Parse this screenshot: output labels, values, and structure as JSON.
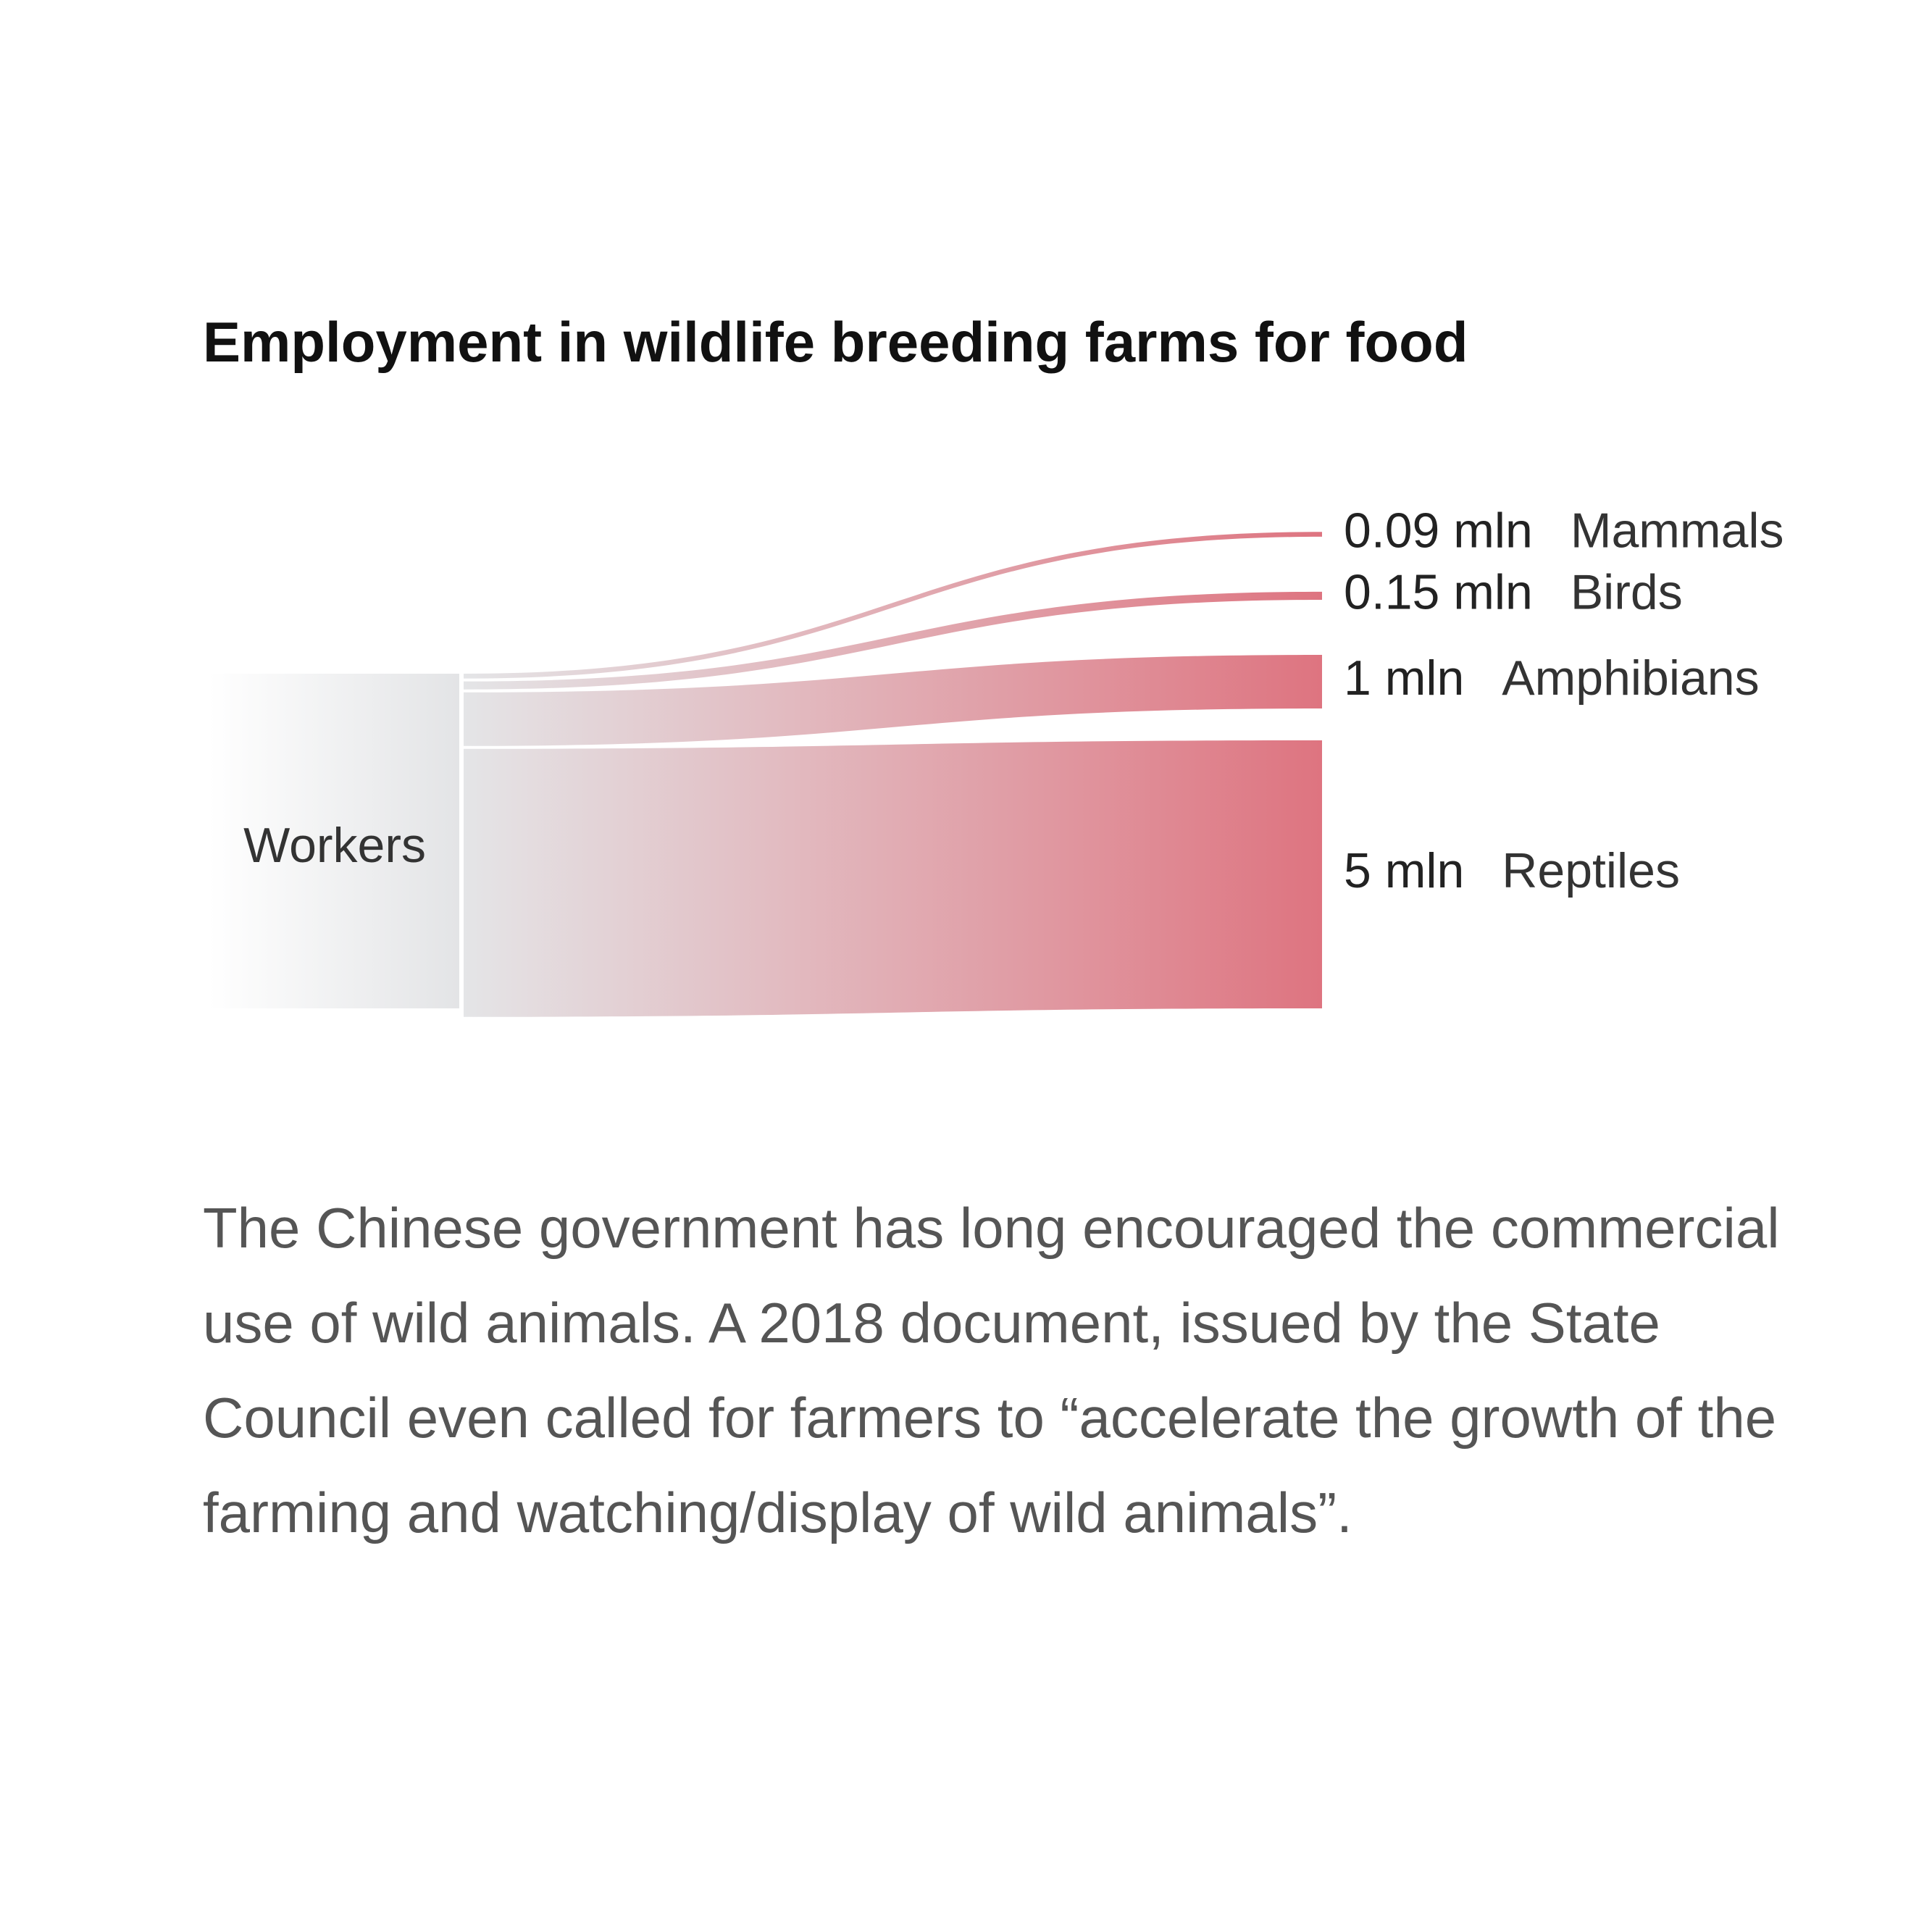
{
  "title": "Employment in wildlife breeding farms for food",
  "colors": {
    "flow_start": "#e4e5e7",
    "flow_end": "#de7480",
    "source_node": "#e3e4e6"
  },
  "chart_data": {
    "type": "sankey",
    "title": "Employment in wildlife breeding farms for food",
    "source": "Workers",
    "unit": "mln",
    "flows": [
      {
        "label": "Mammals",
        "value": 0.09,
        "value_label": "0.09 mln"
      },
      {
        "label": "Birds",
        "value": 0.15,
        "value_label": "0.15 mln"
      },
      {
        "label": "Amphibians",
        "value": 1,
        "value_label": "1 mln"
      },
      {
        "label": "Reptiles",
        "value": 5,
        "value_label": "5 mln"
      }
    ]
  },
  "body_text": "The Chinese government has long encouraged the commercial use of wild animals. A 2018 document, issued by the State Council even called for farmers to “accelerate the growth of the farming and watching/display of wild animals”."
}
